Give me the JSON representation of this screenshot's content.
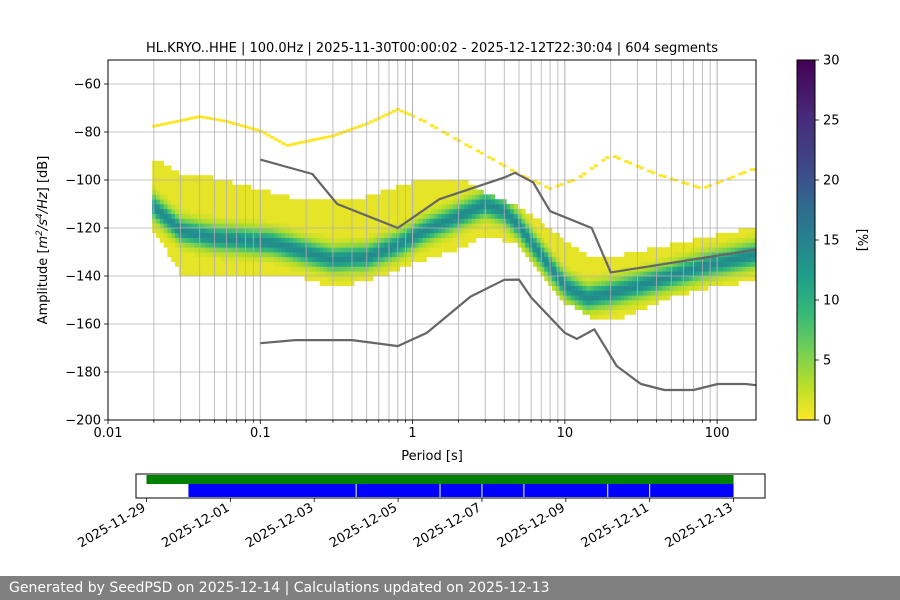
{
  "footer": "Generated by SeedPSD on 2025-12-14 | Calculations updated on 2025-12-13",
  "chart_data": [
    {
      "type": "heatmap",
      "title": "HL.KRYO..HHE | 100.0Hz | 2025-11-30T00:00:02 - 2025-12-12T22:30:04 | 604 segments",
      "xlabel": "Period [s]",
      "ylabel_parts": [
        "Amplitude [",
        "m",
        "2",
        "/s",
        "4",
        "/Hz",
        "] [dB]"
      ],
      "x_scale": "log",
      "xlim": [
        0.01,
        180
      ],
      "ylim": [
        -200,
        -50
      ],
      "xticks": [
        {
          "v": 0.01,
          "label": "0.01"
        },
        {
          "v": 0.1,
          "label": "0.1"
        },
        {
          "v": 1,
          "label": "1"
        },
        {
          "v": 10,
          "label": "10"
        },
        {
          "v": 100,
          "label": "100"
        }
      ],
      "yticks": [
        {
          "v": -60,
          "label": "−60"
        },
        {
          "v": -80,
          "label": "−80"
        },
        {
          "v": -100,
          "label": "−100"
        },
        {
          "v": -120,
          "label": "−120"
        },
        {
          "v": -140,
          "label": "−140"
        },
        {
          "v": -160,
          "label": "−160"
        },
        {
          "v": -180,
          "label": "−180"
        },
        {
          "v": -200,
          "label": "−200"
        }
      ],
      "grid": true,
      "colorbar": {
        "label": "[%]",
        "range": [
          0,
          30
        ],
        "ticks": [
          "0",
          "5",
          "10",
          "15",
          "20",
          "25",
          "30"
        ],
        "colormap": "viridis_r"
      },
      "psd_mode": {
        "x": [
          0.02,
          0.03,
          0.05,
          0.08,
          0.12,
          0.2,
          0.3,
          0.5,
          0.8,
          1.2,
          2,
          3,
          4,
          5,
          6,
          8,
          10,
          14,
          20,
          30,
          50,
          80,
          180
        ],
        "y": [
          -112,
          -122,
          -125,
          -126,
          -127,
          -131,
          -134,
          -133,
          -128,
          -122,
          -116,
          -111,
          -114,
          -120,
          -127,
          -137,
          -145,
          -150,
          -148,
          -145,
          -141,
          -137,
          -132
        ]
      },
      "psd_spread": {
        "x": [
          0.02,
          0.03,
          0.05,
          0.1,
          0.2,
          0.3,
          0.5,
          1,
          2,
          3,
          5,
          10,
          15,
          20,
          30,
          50,
          100,
          180
        ],
        "lower": [
          -122,
          -140,
          -140,
          -140,
          -142,
          -146,
          -143,
          -136,
          -130,
          -124,
          -128,
          -152,
          -158,
          -160,
          -156,
          -150,
          -145,
          -143
        ],
        "upper": [
          -92,
          -98,
          -100,
          -105,
          -110,
          -110,
          -108,
          -102,
          -100,
          -106,
          -112,
          -126,
          -133,
          -133,
          -131,
          -128,
          -124,
          -120
        ]
      },
      "sparse_high": {
        "x": [
          0.02,
          0.04,
          0.06,
          0.1,
          0.15,
          0.3,
          0.5,
          0.8,
          1.2,
          2,
          3,
          5,
          8,
          12,
          20,
          40,
          80,
          170
        ],
        "y": [
          -78,
          -74,
          -76,
          -80,
          -86,
          -82,
          -77,
          -71,
          -76,
          -84,
          -90,
          -98,
          -104,
          -100,
          -90,
          -98,
          -104,
          -96
        ]
      },
      "series": [
        {
          "x": [
            0.1,
            0.22,
            0.32,
            0.8,
            1.5,
            4,
            4.7,
            6.2,
            8,
            15,
            20,
            180
          ],
          "y": [
            -91.5,
            -97.5,
            -110,
            -120,
            -108,
            -99,
            -97,
            -101,
            -113,
            -120,
            -138.5,
            -129
          ],
          "color": "#666666"
        },
        {
          "x": [
            0.1,
            0.17,
            0.4,
            0.8,
            1.24,
            2.4,
            4,
            5,
            6,
            10,
            12,
            15.6,
            21.9,
            31.6,
            45,
            70,
            101,
            154,
            180
          ],
          "y": [
            -168,
            -166.7,
            -166.7,
            -169.2,
            -163.7,
            -148.6,
            -141.6,
            -141.5,
            -148.9,
            -163.7,
            -166.2,
            -162.2,
            -177.5,
            -185,
            -187.5,
            -187.5,
            -185,
            -185,
            -185.5
          ],
          "color": "#666666"
        }
      ]
    },
    {
      "type": "timeline",
      "xlim": [
        "2025-11-28T18:00",
        "2025-12-13T18:00"
      ],
      "xticks": [
        "2025-11-29",
        "2025-12-01",
        "2025-12-03",
        "2025-12-05",
        "2025-12-07",
        "2025-12-09",
        "2025-12-11",
        "2025-12-13"
      ],
      "bars": [
        {
          "start": "2025-11-29T00:00",
          "end": "2025-12-13T00:00",
          "color": "#008000"
        },
        {
          "start": "2025-11-30T00:00",
          "end": "2025-12-13T00:00",
          "color": "#0000ff"
        }
      ],
      "gaps": [
        "2025-12-04T00:00",
        "2025-12-06T00:00",
        "2025-12-07T00:00",
        "2025-12-08T00:00",
        "2025-12-10T00:00",
        "2025-12-11T00:00"
      ]
    }
  ]
}
